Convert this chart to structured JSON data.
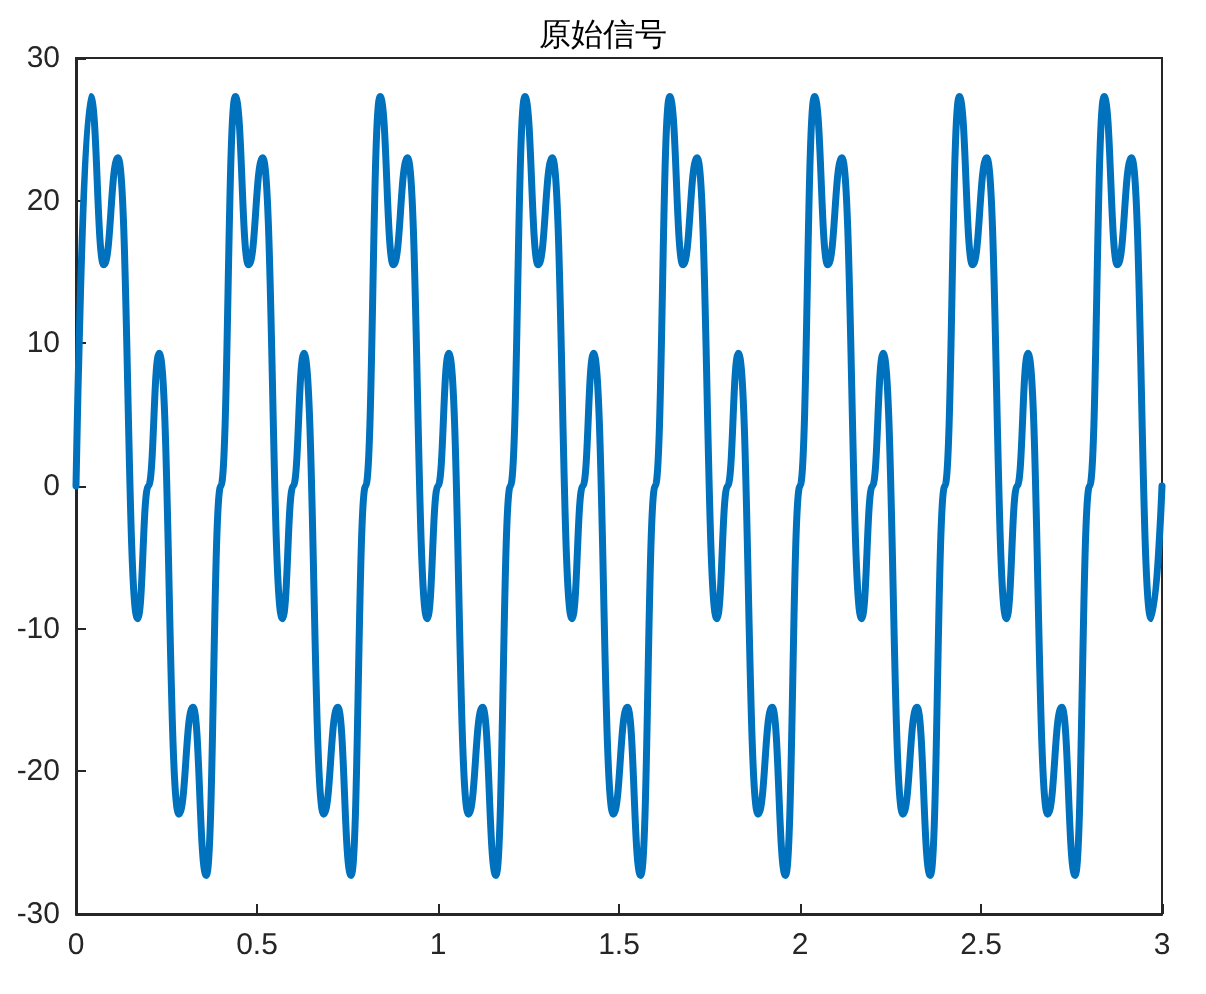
{
  "chart_data": {
    "type": "line",
    "title": "原始信号",
    "x": [
      0,
      0.04,
      0.077,
      0.116,
      0.17,
      0.2,
      0.23,
      0.284,
      0.323,
      0.36,
      0.4,
      0.44,
      0.477,
      0.516,
      0.57,
      0.6,
      0.63,
      0.684,
      0.723,
      0.76,
      0.8,
      0.84,
      0.877,
      0.916,
      0.97,
      1,
      1.03,
      1.084,
      1.123,
      1.16,
      1.2,
      1.24,
      1.277,
      1.316,
      1.37,
      1.4,
      1.43,
      1.484,
      1.523,
      1.56,
      1.6,
      1.64,
      1.677,
      1.716,
      1.77,
      1.8,
      1.83,
      1.884,
      1.923,
      1.96,
      2,
      2.04,
      2.077,
      2.116,
      2.17,
      2.2,
      2.23,
      2.284,
      2.323,
      2.36,
      2.4,
      2.44,
      2.477,
      2.516,
      2.57,
      2.6,
      2.63,
      2.684,
      2.723,
      2.76,
      2.8,
      2.84,
      2.877,
      2.916,
      2.97,
      3
    ],
    "series": [
      {
        "color": "#0072bd",
        "values": [
          0,
          27.3,
          15.5,
          23,
          -9.3,
          0,
          9.3,
          -23,
          -15.5,
          -27.3,
          0,
          27.3,
          15.5,
          23,
          -9.3,
          0,
          9.3,
          -23,
          -15.5,
          -27.3,
          0,
          27.3,
          15.5,
          23,
          -9.3,
          0,
          9.3,
          -23,
          -15.5,
          -27.3,
          0,
          27.3,
          15.5,
          23,
          -9.3,
          0,
          9.3,
          -23,
          -15.5,
          -27.3,
          0,
          27.3,
          15.5,
          23,
          -9.3,
          0,
          9.3,
          -23,
          -15.5,
          -27.3,
          0,
          27.3,
          15.5,
          23,
          -9.3,
          0,
          9.3,
          -23,
          -15.5,
          -27.3,
          0,
          27.3,
          15.5,
          23,
          -9.3,
          0,
          9.3,
          -23,
          -15.5,
          -27.3,
          0,
          27.3,
          15.5,
          23,
          -9.3,
          0
        ]
      }
    ],
    "xlim": [
      0,
      3
    ],
    "xticks": [
      0,
      0.5,
      1,
      1.5,
      2,
      2.5,
      3
    ],
    "ylim": [
      -30,
      30
    ],
    "yticks": [
      -30,
      -20,
      -10,
      0,
      10,
      20,
      30
    ],
    "grid": false,
    "marker": "none",
    "line_style": "solid"
  }
}
